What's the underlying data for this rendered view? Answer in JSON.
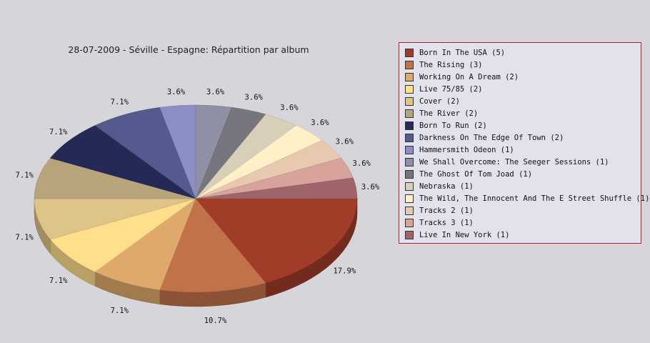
{
  "chart_data": {
    "type": "pie",
    "title": "28-07-2009 - Séville - Espagne:  Répartition par album",
    "slices": [
      {
        "label": "Born In The USA",
        "legend": "Born In The USA (5)",
        "value": 5,
        "pct_label": "17.9%",
        "color": "#a03c28"
      },
      {
        "label": "The Rising",
        "legend": "The Rising (3)",
        "value": 3,
        "pct_label": "10.7%",
        "color": "#c27249"
      },
      {
        "label": "Working On A Dream",
        "legend": "Working On A Dream (2)",
        "value": 2,
        "pct_label": "7.1%",
        "color": "#dfa96c"
      },
      {
        "label": "Live 75/85",
        "legend": "Live 75/85 (2)",
        "value": 2,
        "pct_label": "7.1%",
        "color": "#ffdf8c"
      },
      {
        "label": "Cover",
        "legend": "Cover (2)",
        "value": 2,
        "pct_label": "7.1%",
        "color": "#dfc487"
      },
      {
        "label": "The River",
        "legend": "The River (2)",
        "value": 2,
        "pct_label": "7.1%",
        "color": "#b8a47a"
      },
      {
        "label": "Born To Run",
        "legend": "Born To Run (2)",
        "value": 2,
        "pct_label": "7.1%",
        "color": "#242a55"
      },
      {
        "label": "Darkness On The Edge Of Town",
        "legend": "Darkness On The Edge Of Town (2)",
        "value": 2,
        "pct_label": "7.1%",
        "color": "#545a8e"
      },
      {
        "label": "Hammersmith Odeon",
        "legend": "Hammersmith Odeon  (1)",
        "value": 1,
        "pct_label": "3.6%",
        "color": "#8b8fc6"
      },
      {
        "label": "We Shall Overcome: The Seeger Sessions",
        "legend": "We Shall Overcome: The Seeger Sessions (1)",
        "value": 1,
        "pct_label": "3.6%",
        "color": "#8f8fa6"
      },
      {
        "label": "The Ghost Of Tom Joad",
        "legend": "The Ghost Of Tom Joad (1)",
        "value": 1,
        "pct_label": "3.6%",
        "color": "#77767f"
      },
      {
        "label": "Nebraska",
        "legend": "Nebraska (1)",
        "value": 1,
        "pct_label": "3.6%",
        "color": "#d8cfb8"
      },
      {
        "label": "The Wild, The Innocent And The E Street Shuffle",
        "legend": "The Wild, The Innocent And The E Street Shuffle (1)",
        "value": 1,
        "pct_label": "3.6%",
        "color": "#fff0c8"
      },
      {
        "label": "Tracks 2",
        "legend": "Tracks 2 (1)",
        "value": 1,
        "pct_label": "3.6%",
        "color": "#e9c8b0"
      },
      {
        "label": "Tracks 3",
        "legend": "Tracks 3 (1)",
        "value": 1,
        "pct_label": "3.6%",
        "color": "#d7a39a"
      },
      {
        "label": "Live In New York",
        "legend": "Live In New York  (1)",
        "value": 1,
        "pct_label": "3.6%",
        "color": "#a0656a"
      }
    ],
    "legend_position": "right",
    "style": "3d-pie"
  }
}
